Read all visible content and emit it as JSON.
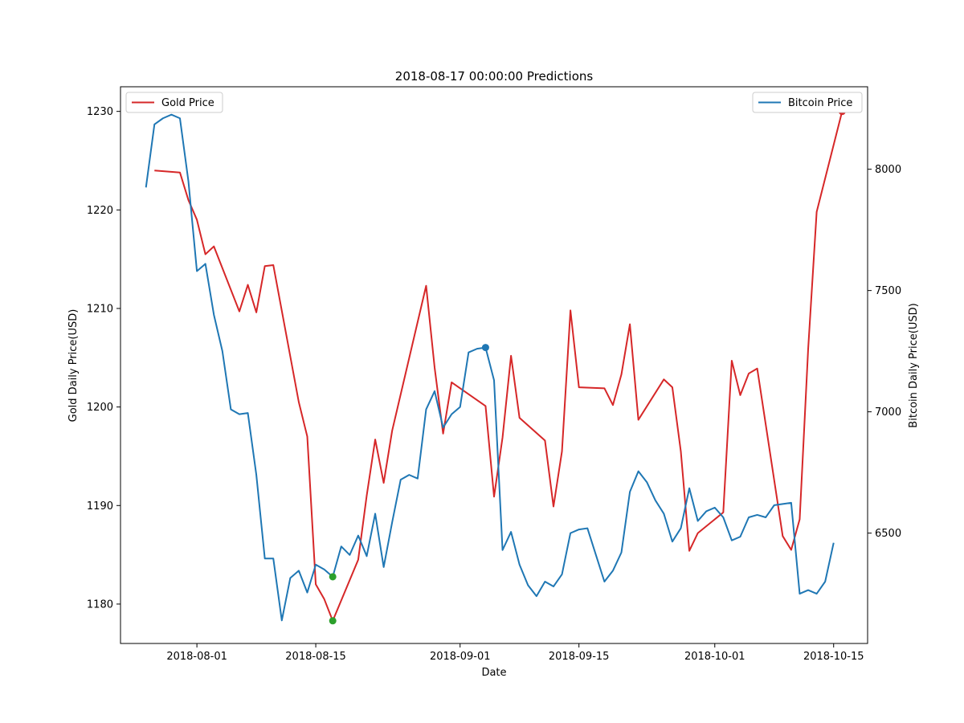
{
  "chart_data": {
    "type": "line",
    "title": "2018-08-17 00:00:00 Predictions",
    "xlabel": "Date",
    "ylabel_left": "Gold Daily Price(USD)",
    "ylabel_right": "Bitcoin Daily Price(USD)",
    "xlim": [
      "2018-07-23",
      "2018-10-19"
    ],
    "ylim_left": [
      1176,
      1232.5
    ],
    "ylim_right": [
      6045,
      8340
    ],
    "x_ticks": [
      "2018-08-01",
      "2018-08-15",
      "2018-09-01",
      "2018-09-15",
      "2018-10-01",
      "2018-10-15"
    ],
    "y_ticks_left": [
      1180,
      1190,
      1200,
      1210,
      1220,
      1230
    ],
    "y_ticks_right": [
      6500,
      7000,
      7500,
      8000
    ],
    "grid": false,
    "series": [
      {
        "name": "Gold Price",
        "axis": "left",
        "color": "#d62728",
        "legend_position": "upper-left",
        "points": [
          [
            "2018-07-27",
            1224.0
          ],
          [
            "2018-07-30",
            1223.8
          ],
          [
            "2018-07-31",
            1221.0
          ],
          [
            "2018-08-01",
            1219.0
          ],
          [
            "2018-08-02",
            1215.5
          ],
          [
            "2018-08-03",
            1216.3
          ],
          [
            "2018-08-06",
            1209.7
          ],
          [
            "2018-08-07",
            1212.4
          ],
          [
            "2018-08-08",
            1209.6
          ],
          [
            "2018-08-09",
            1214.3
          ],
          [
            "2018-08-10",
            1214.4
          ],
          [
            "2018-08-13",
            1200.5
          ],
          [
            "2018-08-14",
            1197.0
          ],
          [
            "2018-08-15",
            1182.0
          ],
          [
            "2018-08-16",
            1180.5
          ],
          [
            "2018-08-17",
            1178.3
          ],
          [
            "2018-08-20",
            1184.5
          ],
          [
            "2018-08-21",
            1191.0
          ],
          [
            "2018-08-22",
            1196.7
          ],
          [
            "2018-08-23",
            1192.3
          ],
          [
            "2018-08-24",
            1197.6
          ],
          [
            "2018-08-28",
            1212.3
          ],
          [
            "2018-08-29",
            1204.0
          ],
          [
            "2018-08-30",
            1197.3
          ],
          [
            "2018-08-31",
            1202.5
          ],
          [
            "2018-09-04",
            1200.1
          ],
          [
            "2018-09-05",
            1190.9
          ],
          [
            "2018-09-06",
            1196.9
          ],
          [
            "2018-09-07",
            1205.2
          ],
          [
            "2018-09-08",
            1198.9
          ],
          [
            "2018-09-11",
            1196.6
          ],
          [
            "2018-09-12",
            1189.9
          ],
          [
            "2018-09-13",
            1195.5
          ],
          [
            "2018-09-14",
            1209.8
          ],
          [
            "2018-09-15",
            1202.0
          ],
          [
            "2018-09-18",
            1201.9
          ],
          [
            "2018-09-19",
            1200.2
          ],
          [
            "2018-09-20",
            1203.3
          ],
          [
            "2018-09-21",
            1208.4
          ],
          [
            "2018-09-22",
            1198.7
          ],
          [
            "2018-09-25",
            1202.8
          ],
          [
            "2018-09-26",
            1202.0
          ],
          [
            "2018-09-27",
            1195.5
          ],
          [
            "2018-09-28",
            1185.4
          ],
          [
            "2018-09-29",
            1187.2
          ],
          [
            "2018-10-02",
            1189.3
          ],
          [
            "2018-10-03",
            1204.7
          ],
          [
            "2018-10-04",
            1201.2
          ],
          [
            "2018-10-05",
            1203.4
          ],
          [
            "2018-10-06",
            1203.9
          ],
          [
            "2018-10-09",
            1186.9
          ],
          [
            "2018-10-10",
            1185.5
          ],
          [
            "2018-10-11",
            1188.6
          ],
          [
            "2018-10-12",
            1205.9
          ],
          [
            "2018-10-13",
            1219.8
          ],
          [
            "2018-10-16",
            1230.0
          ]
        ]
      },
      {
        "name": "Bitcoin Price",
        "axis": "right",
        "color": "#1f77b4",
        "legend_position": "upper-right",
        "points": [
          [
            "2018-07-26",
            7925
          ],
          [
            "2018-07-27",
            8185
          ],
          [
            "2018-07-28",
            8210
          ],
          [
            "2018-07-29",
            8225
          ],
          [
            "2018-07-30",
            8210
          ],
          [
            "2018-07-31",
            7950
          ],
          [
            "2018-08-01",
            7580
          ],
          [
            "2018-08-02",
            7610
          ],
          [
            "2018-08-03",
            7400
          ],
          [
            "2018-08-04",
            7250
          ],
          [
            "2018-08-05",
            7010
          ],
          [
            "2018-08-06",
            6990
          ],
          [
            "2018-08-07",
            6995
          ],
          [
            "2018-08-08",
            6740
          ],
          [
            "2018-08-09",
            6395
          ],
          [
            "2018-08-10",
            6395
          ],
          [
            "2018-08-11",
            6140
          ],
          [
            "2018-08-12",
            6315
          ],
          [
            "2018-08-13",
            6345
          ],
          [
            "2018-08-14",
            6255
          ],
          [
            "2018-08-15",
            6370
          ],
          [
            "2018-08-16",
            6350
          ],
          [
            "2018-08-17",
            6320
          ],
          [
            "2018-08-18",
            6445
          ],
          [
            "2018-08-19",
            6410
          ],
          [
            "2018-08-20",
            6490
          ],
          [
            "2018-08-21",
            6405
          ],
          [
            "2018-08-22",
            6580
          ],
          [
            "2018-08-23",
            6360
          ],
          [
            "2018-08-24",
            6545
          ],
          [
            "2018-08-25",
            6720
          ],
          [
            "2018-08-26",
            6740
          ],
          [
            "2018-08-27",
            6725
          ],
          [
            "2018-08-28",
            7010
          ],
          [
            "2018-08-29",
            7085
          ],
          [
            "2018-08-30",
            6935
          ],
          [
            "2018-08-31",
            6990
          ],
          [
            "2018-09-01",
            7020
          ],
          [
            "2018-09-02",
            7245
          ],
          [
            "2018-09-03",
            7260
          ],
          [
            "2018-09-04",
            7265
          ],
          [
            "2018-09-05",
            7130
          ],
          [
            "2018-09-06",
            6430
          ],
          [
            "2018-09-07",
            6505
          ],
          [
            "2018-09-08",
            6370
          ],
          [
            "2018-09-09",
            6285
          ],
          [
            "2018-09-10",
            6240
          ],
          [
            "2018-09-11",
            6300
          ],
          [
            "2018-09-12",
            6280
          ],
          [
            "2018-09-13",
            6330
          ],
          [
            "2018-09-14",
            6500
          ],
          [
            "2018-09-15",
            6515
          ],
          [
            "2018-09-16",
            6520
          ],
          [
            "2018-09-17",
            6410
          ],
          [
            "2018-09-18",
            6300
          ],
          [
            "2018-09-19",
            6345
          ],
          [
            "2018-09-20",
            6420
          ],
          [
            "2018-09-21",
            6670
          ],
          [
            "2018-09-22",
            6755
          ],
          [
            "2018-09-23",
            6710
          ],
          [
            "2018-09-24",
            6635
          ],
          [
            "2018-09-25",
            6580
          ],
          [
            "2018-09-26",
            6465
          ],
          [
            "2018-09-27",
            6520
          ],
          [
            "2018-09-28",
            6685
          ],
          [
            "2018-09-29",
            6550
          ],
          [
            "2018-09-30",
            6590
          ],
          [
            "2018-10-01",
            6605
          ],
          [
            "2018-10-02",
            6565
          ],
          [
            "2018-10-03",
            6470
          ],
          [
            "2018-10-04",
            6485
          ],
          [
            "2018-10-05",
            6565
          ],
          [
            "2018-10-06",
            6575
          ],
          [
            "2018-10-07",
            6565
          ],
          [
            "2018-10-08",
            6615
          ],
          [
            "2018-10-09",
            6620
          ],
          [
            "2018-10-10",
            6625
          ],
          [
            "2018-10-11",
            6250
          ],
          [
            "2018-10-12",
            6265
          ],
          [
            "2018-10-13",
            6250
          ],
          [
            "2018-10-14",
            6300
          ],
          [
            "2018-10-15",
            6460
          ]
        ]
      }
    ],
    "markers": [
      {
        "axis": "left",
        "color": "#2ca02c",
        "x": "2018-08-17",
        "y": 1178.3
      },
      {
        "axis": "right",
        "color": "#2ca02c",
        "x": "2018-08-17",
        "y": 6320
      },
      {
        "axis": "right",
        "color": "#1f77b4",
        "x": "2018-09-04",
        "y": 7265
      },
      {
        "axis": "left",
        "color": "#d62728",
        "x": "2018-10-16",
        "y": 1230.0
      }
    ]
  }
}
